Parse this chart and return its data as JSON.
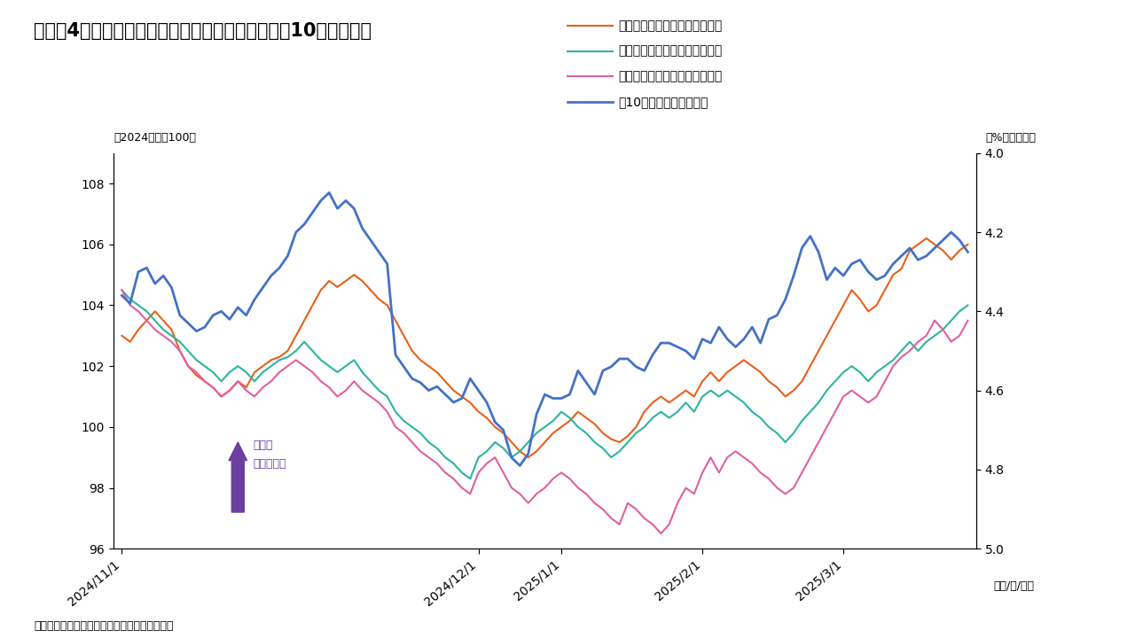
{
  "title": "（図表4）円・ユーロ・ポンドの対ドルレートと米10年国債金利",
  "subtitle_left": "（2024年末＝100）",
  "subtitle_right": "（%、逆目盛）",
  "xlabel": "（年/月/日）",
  "source": "（出所）ブルームバーグよりインベスコが作成",
  "arrow_label1": "ドル安",
  "arrow_label2": "当該通貨高",
  "ylim_left": [
    96,
    109
  ],
  "ylim_right": [
    4.0,
    5.0
  ],
  "yticks_left": [
    96,
    98,
    100,
    102,
    104,
    106,
    108
  ],
  "yticks_right": [
    4.0,
    4.2,
    4.4,
    4.6,
    4.8,
    5.0
  ],
  "legend": [
    {
      "label": "日本円の対ドルレート（左軸）",
      "color": "#E8601C"
    },
    {
      "label": "ユーロの対ドルレート（左軸）",
      "color": "#2BB5A0"
    },
    {
      "label": "ポンドの対ドルレート（左軸）",
      "color": "#E060A0"
    },
    {
      "label": "米10年国債金利（右軸）",
      "color": "#4472C4"
    }
  ],
  "jpy": [
    103.0,
    102.8,
    103.2,
    103.5,
    103.8,
    103.5,
    103.2,
    102.5,
    102.0,
    101.7,
    101.5,
    101.3,
    101.0,
    101.2,
    101.5,
    101.3,
    101.8,
    102.0,
    102.2,
    102.3,
    102.5,
    103.0,
    103.5,
    104.0,
    104.5,
    104.8,
    104.6,
    104.8,
    105.0,
    104.8,
    104.5,
    104.2,
    104.0,
    103.5,
    103.0,
    102.5,
    102.2,
    102.0,
    101.8,
    101.5,
    101.2,
    101.0,
    100.8,
    100.5,
    100.3,
    100.0,
    99.8,
    99.5,
    99.2,
    99.0,
    99.2,
    99.5,
    99.8,
    100.0,
    100.2,
    100.5,
    100.3,
    100.1,
    99.8,
    99.6,
    99.5,
    99.7,
    100.0,
    100.5,
    100.8,
    101.0,
    100.8,
    101.0,
    101.2,
    101.0,
    101.5,
    101.8,
    101.5,
    101.8,
    102.0,
    102.2,
    102.0,
    101.8,
    101.5,
    101.3,
    101.0,
    101.2,
    101.5,
    102.0,
    102.5,
    103.0,
    103.5,
    104.0,
    104.5,
    104.2,
    103.8,
    104.0,
    104.5,
    105.0,
    105.2,
    105.8,
    106.0,
    106.2,
    106.0,
    105.8,
    105.5,
    105.8,
    106.0
  ],
  "eur": [
    104.5,
    104.2,
    104.0,
    103.8,
    103.5,
    103.2,
    103.0,
    102.8,
    102.5,
    102.2,
    102.0,
    101.8,
    101.5,
    101.8,
    102.0,
    101.8,
    101.5,
    101.8,
    102.0,
    102.2,
    102.3,
    102.5,
    102.8,
    102.5,
    102.2,
    102.0,
    101.8,
    102.0,
    102.2,
    101.8,
    101.5,
    101.2,
    101.0,
    100.5,
    100.2,
    100.0,
    99.8,
    99.5,
    99.3,
    99.0,
    98.8,
    98.5,
    98.3,
    99.0,
    99.2,
    99.5,
    99.3,
    99.0,
    99.2,
    99.5,
    99.8,
    100.0,
    100.2,
    100.5,
    100.3,
    100.0,
    99.8,
    99.5,
    99.3,
    99.0,
    99.2,
    99.5,
    99.8,
    100.0,
    100.3,
    100.5,
    100.3,
    100.5,
    100.8,
    100.5,
    101.0,
    101.2,
    101.0,
    101.2,
    101.0,
    100.8,
    100.5,
    100.3,
    100.0,
    99.8,
    99.5,
    99.8,
    100.2,
    100.5,
    100.8,
    101.2,
    101.5,
    101.8,
    102.0,
    101.8,
    101.5,
    101.8,
    102.0,
    102.2,
    102.5,
    102.8,
    102.5,
    102.8,
    103.0,
    103.2,
    103.5,
    103.8,
    104.0
  ],
  "gbp": [
    104.5,
    104.0,
    103.8,
    103.5,
    103.2,
    103.0,
    102.8,
    102.5,
    102.0,
    101.8,
    101.5,
    101.3,
    101.0,
    101.2,
    101.5,
    101.2,
    101.0,
    101.3,
    101.5,
    101.8,
    102.0,
    102.2,
    102.0,
    101.8,
    101.5,
    101.3,
    101.0,
    101.2,
    101.5,
    101.2,
    101.0,
    100.8,
    100.5,
    100.0,
    99.8,
    99.5,
    99.2,
    99.0,
    98.8,
    98.5,
    98.3,
    98.0,
    97.8,
    98.5,
    98.8,
    99.0,
    98.5,
    98.0,
    97.8,
    97.5,
    97.8,
    98.0,
    98.3,
    98.5,
    98.3,
    98.0,
    97.8,
    97.5,
    97.3,
    97.0,
    96.8,
    97.5,
    97.3,
    97.0,
    96.8,
    96.5,
    96.8,
    97.5,
    98.0,
    97.8,
    98.5,
    99.0,
    98.5,
    99.0,
    99.2,
    99.0,
    98.8,
    98.5,
    98.3,
    98.0,
    97.8,
    98.0,
    98.5,
    99.0,
    99.5,
    100.0,
    100.5,
    101.0,
    101.2,
    101.0,
    100.8,
    101.0,
    101.5,
    102.0,
    102.3,
    102.5,
    102.8,
    103.0,
    103.5,
    103.2,
    102.8,
    103.0,
    103.5
  ],
  "us10y": [
    4.36,
    4.38,
    4.3,
    4.29,
    4.33,
    4.31,
    4.34,
    4.41,
    4.43,
    4.45,
    4.44,
    4.41,
    4.4,
    4.42,
    4.39,
    4.41,
    4.37,
    4.34,
    4.31,
    4.29,
    4.26,
    4.2,
    4.18,
    4.15,
    4.12,
    4.1,
    4.14,
    4.12,
    4.14,
    4.19,
    4.22,
    4.25,
    4.28,
    4.51,
    4.54,
    4.57,
    4.58,
    4.6,
    4.59,
    4.61,
    4.63,
    4.62,
    4.57,
    4.6,
    4.63,
    4.68,
    4.7,
    4.77,
    4.79,
    4.76,
    4.66,
    4.61,
    4.62,
    4.62,
    4.61,
    4.55,
    4.58,
    4.61,
    4.55,
    4.54,
    4.52,
    4.52,
    4.54,
    4.55,
    4.51,
    4.48,
    4.48,
    4.49,
    4.5,
    4.52,
    4.47,
    4.48,
    4.44,
    4.47,
    4.49,
    4.47,
    4.44,
    4.48,
    4.42,
    4.41,
    4.37,
    4.31,
    4.24,
    4.21,
    4.25,
    4.32,
    4.29,
    4.31,
    4.28,
    4.27,
    4.3,
    4.32,
    4.31,
    4.28,
    4.26,
    4.24,
    4.27,
    4.26,
    4.24,
    4.22,
    4.2,
    4.22,
    4.25
  ],
  "xtick_dates": [
    "2024/11/1",
    "2024/12/1",
    "2025/1/1",
    "2025/2/1",
    "2025/3/1"
  ],
  "xtick_positions": [
    0,
    43,
    53,
    70,
    87
  ],
  "bg_color": "#ffffff",
  "arrow_color": "#6B3FA0"
}
